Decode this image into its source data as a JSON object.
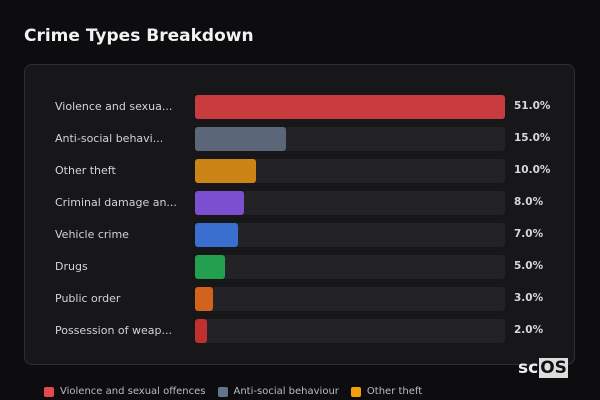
{
  "title": "Crime Types Breakdown",
  "chart_data": {
    "type": "bar",
    "orientation": "horizontal",
    "title": "Crime Types Breakdown",
    "categories": [
      "Violence and sexua...",
      "Anti-social behavi...",
      "Other theft",
      "Criminal damage an...",
      "Vehicle crime",
      "Drugs",
      "Public order",
      "Possession of weap..."
    ],
    "values": [
      51.0,
      15.0,
      10.0,
      8.0,
      7.0,
      5.0,
      3.0,
      2.0
    ],
    "value_labels": [
      "51.0%",
      "15.0%",
      "10.0%",
      "8.0%",
      "7.0%",
      "5.0%",
      "3.0%",
      "2.0%"
    ],
    "colors": [
      "#c83c3f",
      "#5b6678",
      "#cc8416",
      "#7b4fd0",
      "#3a6fd0",
      "#23a04f",
      "#d2631c",
      "#c0302f"
    ],
    "xlim": [
      0,
      51
    ],
    "legend": {
      "placement": "bottom",
      "entries": [
        {
          "label": "Violence and sexual offences",
          "color": "#e5484d"
        },
        {
          "label": "Anti-social behaviour",
          "color": "#64748b"
        },
        {
          "label": "Other theft",
          "color": "#f59e0b"
        }
      ]
    }
  },
  "logo": {
    "text_a": "sc",
    "text_b": "OS"
  }
}
